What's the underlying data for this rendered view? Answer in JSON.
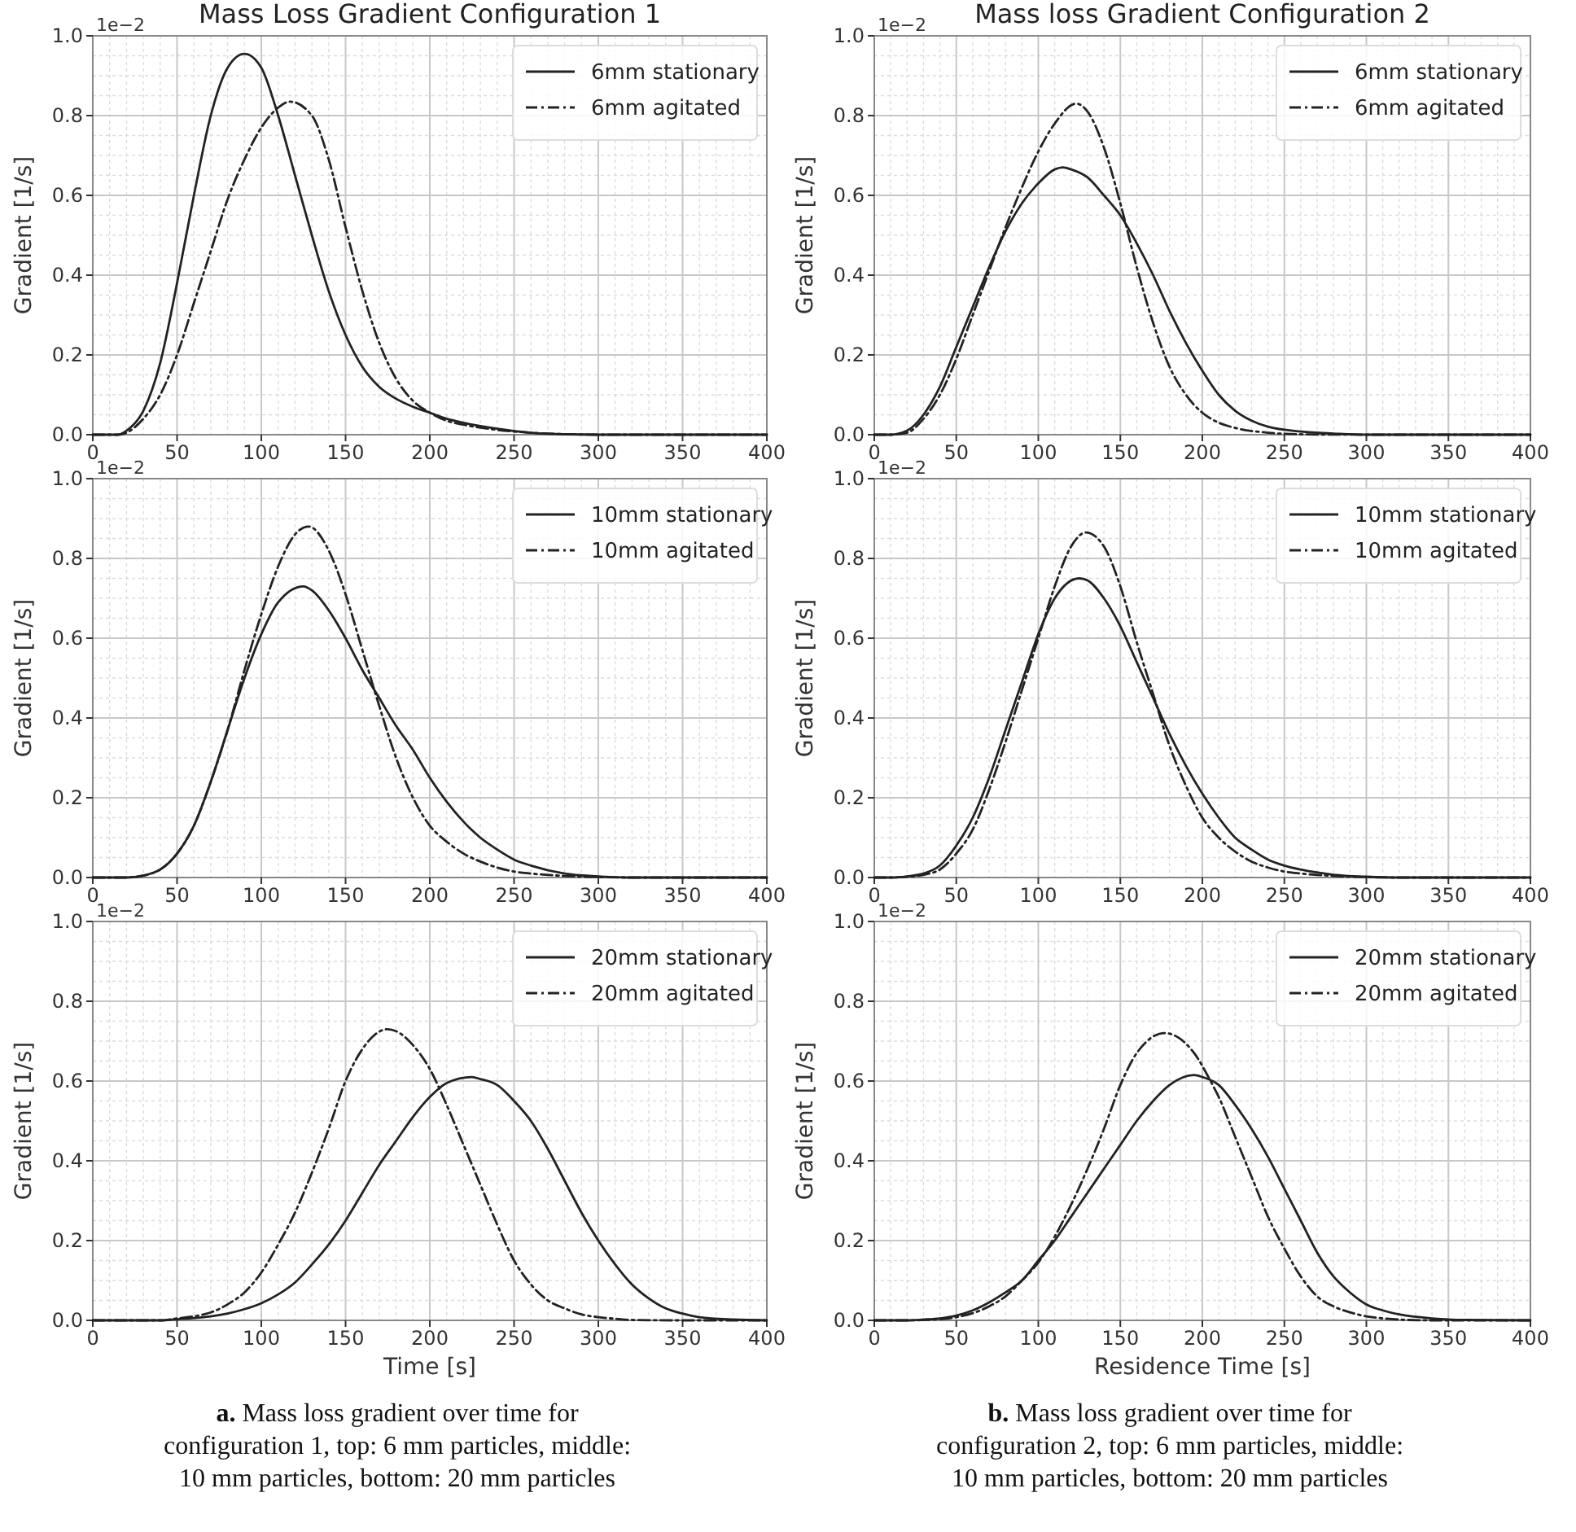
{
  "chart_data": [
    {
      "type": "line",
      "title": "Mass Loss Gradient Configuration 1",
      "ylabel": "Gradient [1/s]",
      "annotations": [
        "1e−2"
      ],
      "xlim": [
        0,
        400
      ],
      "ylim": [
        0,
        1
      ],
      "xticks": [
        0,
        50,
        100,
        150,
        200,
        250,
        300,
        350,
        400
      ],
      "yticks": [
        {
          "value": 0,
          "label": "0.0"
        },
        {
          "value": 0.2,
          "label": "0.2"
        },
        {
          "value": 0.4,
          "label": "0.4"
        },
        {
          "value": 0.6,
          "label": "0.6"
        },
        {
          "value": 0.8,
          "label": "0.8"
        },
        {
          "value": 1,
          "label": "1.0"
        }
      ],
      "grid": true,
      "legend": "top right",
      "series": [
        {
          "name": "6mm stationary",
          "color": "#222222",
          "line_style": "solid",
          "x": [
            0,
            15,
            20,
            30,
            40,
            50,
            60,
            70,
            80,
            90,
            100,
            110,
            120,
            130,
            140,
            150,
            160,
            170,
            180,
            190,
            200,
            210,
            220,
            240,
            260,
            280,
            300,
            400
          ],
          "values": [
            0,
            0,
            0.01,
            0.06,
            0.18,
            0.38,
            0.6,
            0.8,
            0.92,
            0.955,
            0.92,
            0.8,
            0.65,
            0.5,
            0.36,
            0.25,
            0.17,
            0.12,
            0.09,
            0.07,
            0.055,
            0.04,
            0.03,
            0.015,
            0.005,
            0.001,
            0,
            0
          ]
        },
        {
          "name": "6mm agitated",
          "color": "#222222",
          "line_style": "dashdot",
          "x": [
            0,
            15,
            20,
            30,
            40,
            50,
            60,
            70,
            80,
            90,
            100,
            110,
            117,
            130,
            140,
            150,
            160,
            170,
            180,
            190,
            200,
            210,
            220,
            240,
            260,
            300,
            400
          ],
          "values": [
            0,
            0,
            0.005,
            0.04,
            0.1,
            0.2,
            0.33,
            0.46,
            0.59,
            0.69,
            0.77,
            0.82,
            0.835,
            0.8,
            0.69,
            0.52,
            0.36,
            0.23,
            0.14,
            0.085,
            0.055,
            0.035,
            0.025,
            0.012,
            0.005,
            0,
            0
          ]
        }
      ]
    },
    {
      "type": "line",
      "title": "Mass loss Gradient Configuration 2",
      "ylabel": "Gradient [1/s]",
      "annotations": [
        "1e−2"
      ],
      "xlim": [
        0,
        400
      ],
      "ylim": [
        0,
        1
      ],
      "xticks": [
        0,
        50,
        100,
        150,
        200,
        250,
        300,
        350,
        400
      ],
      "yticks": [
        {
          "value": 0,
          "label": "0.0"
        },
        {
          "value": 0.2,
          "label": "0.2"
        },
        {
          "value": 0.4,
          "label": "0.4"
        },
        {
          "value": 0.6,
          "label": "0.6"
        },
        {
          "value": 0.8,
          "label": "0.8"
        },
        {
          "value": 1,
          "label": "1.0"
        }
      ],
      "grid": true,
      "legend": "top right",
      "series": [
        {
          "name": "6mm stationary",
          "color": "#222222",
          "line_style": "solid",
          "x": [
            0,
            10,
            20,
            30,
            40,
            50,
            60,
            70,
            80,
            90,
            100,
            110,
            115,
            120,
            130,
            140,
            150,
            160,
            170,
            180,
            190,
            200,
            210,
            220,
            230,
            240,
            260,
            280,
            300,
            400
          ],
          "values": [
            0,
            0,
            0.01,
            0.05,
            0.12,
            0.22,
            0.32,
            0.42,
            0.51,
            0.58,
            0.63,
            0.665,
            0.67,
            0.665,
            0.645,
            0.6,
            0.55,
            0.48,
            0.4,
            0.31,
            0.23,
            0.16,
            0.1,
            0.06,
            0.035,
            0.02,
            0.008,
            0.003,
            0,
            0
          ]
        },
        {
          "name": "6mm agitated",
          "color": "#222222",
          "line_style": "dashdot",
          "x": [
            0,
            10,
            20,
            30,
            40,
            50,
            60,
            70,
            80,
            90,
            100,
            110,
            123,
            130,
            140,
            150,
            160,
            170,
            180,
            190,
            200,
            210,
            220,
            240,
            260,
            300,
            400
          ],
          "values": [
            0,
            0,
            0.005,
            0.04,
            0.1,
            0.19,
            0.3,
            0.41,
            0.52,
            0.62,
            0.71,
            0.78,
            0.83,
            0.81,
            0.72,
            0.58,
            0.42,
            0.28,
            0.17,
            0.1,
            0.055,
            0.03,
            0.017,
            0.005,
            0.001,
            0,
            0
          ]
        }
      ]
    },
    {
      "type": "line",
      "ylabel": "Gradient [1/s]",
      "annotations": [
        "1e−2"
      ],
      "xlim": [
        0,
        400
      ],
      "ylim": [
        0,
        1
      ],
      "xticks": [
        0,
        50,
        100,
        150,
        200,
        250,
        300,
        350,
        400
      ],
      "yticks": [
        {
          "value": 0,
          "label": "0.0"
        },
        {
          "value": 0.2,
          "label": "0.2"
        },
        {
          "value": 0.4,
          "label": "0.4"
        },
        {
          "value": 0.6,
          "label": "0.6"
        },
        {
          "value": 0.8,
          "label": "0.8"
        },
        {
          "value": 1,
          "label": "1.0"
        }
      ],
      "grid": true,
      "legend": "top right",
      "series": [
        {
          "name": "10mm stationary",
          "color": "#222222",
          "line_style": "solid",
          "x": [
            0,
            20,
            30,
            40,
            50,
            60,
            70,
            80,
            90,
            100,
            110,
            125,
            130,
            140,
            150,
            160,
            170,
            180,
            190,
            200,
            210,
            220,
            230,
            240,
            250,
            260,
            280,
            300,
            320,
            400
          ],
          "values": [
            0,
            0,
            0.005,
            0.02,
            0.06,
            0.13,
            0.24,
            0.37,
            0.5,
            0.61,
            0.69,
            0.73,
            0.72,
            0.67,
            0.6,
            0.52,
            0.45,
            0.38,
            0.32,
            0.25,
            0.19,
            0.14,
            0.1,
            0.07,
            0.045,
            0.03,
            0.01,
            0.003,
            0,
            0
          ]
        },
        {
          "name": "10mm agitated",
          "color": "#222222",
          "line_style": "dashdot",
          "x": [
            0,
            20,
            30,
            40,
            50,
            60,
            70,
            80,
            90,
            100,
            110,
            120,
            128,
            140,
            150,
            160,
            170,
            180,
            190,
            200,
            210,
            220,
            230,
            240,
            250,
            260,
            280,
            300,
            320,
            400
          ],
          "values": [
            0,
            0,
            0.005,
            0.02,
            0.06,
            0.13,
            0.24,
            0.37,
            0.52,
            0.66,
            0.78,
            0.86,
            0.88,
            0.82,
            0.71,
            0.57,
            0.43,
            0.3,
            0.2,
            0.13,
            0.09,
            0.06,
            0.04,
            0.025,
            0.015,
            0.01,
            0.004,
            0.001,
            0,
            0
          ]
        }
      ]
    },
    {
      "type": "line",
      "ylabel": "Gradient [1/s]",
      "annotations": [
        "1e−2"
      ],
      "xlim": [
        0,
        400
      ],
      "ylim": [
        0,
        1
      ],
      "xticks": [
        0,
        50,
        100,
        150,
        200,
        250,
        300,
        350,
        400
      ],
      "yticks": [
        {
          "value": 0,
          "label": "0.0"
        },
        {
          "value": 0.2,
          "label": "0.2"
        },
        {
          "value": 0.4,
          "label": "0.4"
        },
        {
          "value": 0.6,
          "label": "0.6"
        },
        {
          "value": 0.8,
          "label": "0.8"
        },
        {
          "value": 1,
          "label": "1.0"
        }
      ],
      "grid": true,
      "legend": "top right",
      "series": [
        {
          "name": "10mm stationary",
          "color": "#222222",
          "line_style": "solid",
          "x": [
            0,
            10,
            20,
            30,
            40,
            50,
            60,
            70,
            80,
            90,
            100,
            110,
            125,
            130,
            140,
            150,
            160,
            170,
            180,
            190,
            200,
            210,
            220,
            230,
            240,
            250,
            260,
            280,
            300,
            320,
            400
          ],
          "values": [
            0,
            0,
            0.003,
            0.01,
            0.03,
            0.08,
            0.15,
            0.25,
            0.37,
            0.49,
            0.61,
            0.7,
            0.75,
            0.745,
            0.7,
            0.63,
            0.54,
            0.45,
            0.36,
            0.28,
            0.21,
            0.15,
            0.1,
            0.07,
            0.045,
            0.03,
            0.02,
            0.007,
            0.002,
            0,
            0
          ]
        },
        {
          "name": "10mm agitated",
          "color": "#222222",
          "line_style": "dashdot",
          "x": [
            0,
            10,
            20,
            30,
            40,
            50,
            60,
            70,
            80,
            90,
            100,
            110,
            120,
            129,
            140,
            150,
            160,
            170,
            180,
            190,
            200,
            210,
            220,
            230,
            240,
            250,
            260,
            280,
            300,
            320,
            400
          ],
          "values": [
            0,
            0,
            0.002,
            0.007,
            0.02,
            0.06,
            0.12,
            0.22,
            0.34,
            0.47,
            0.6,
            0.73,
            0.83,
            0.865,
            0.83,
            0.73,
            0.59,
            0.46,
            0.33,
            0.23,
            0.15,
            0.1,
            0.065,
            0.04,
            0.025,
            0.015,
            0.01,
            0.004,
            0.001,
            0,
            0
          ]
        }
      ]
    },
    {
      "type": "line",
      "xlabel": "Time [s]",
      "ylabel": "Gradient [1/s]",
      "annotations": [
        "1e−2",
        "a. Mass loss gradient over time for configuration 1, top: 6 mm particles, middle: 10 mm particles, bottom: 20 mm particles"
      ],
      "xlim": [
        0,
        400
      ],
      "ylim": [
        0,
        1
      ],
      "xticks": [
        0,
        50,
        100,
        150,
        200,
        250,
        300,
        350,
        400
      ],
      "yticks": [
        {
          "value": 0,
          "label": "0.0"
        },
        {
          "value": 0.2,
          "label": "0.2"
        },
        {
          "value": 0.4,
          "label": "0.4"
        },
        {
          "value": 0.6,
          "label": "0.6"
        },
        {
          "value": 0.8,
          "label": "0.8"
        },
        {
          "value": 1,
          "label": "1.0"
        }
      ],
      "grid": true,
      "legend": "top right",
      "series": [
        {
          "name": "20mm stationary",
          "color": "#222222",
          "line_style": "solid",
          "x": [
            0,
            40,
            50,
            60,
            70,
            80,
            90,
            100,
            110,
            120,
            130,
            140,
            150,
            160,
            170,
            180,
            190,
            200,
            210,
            225,
            230,
            240,
            250,
            260,
            270,
            280,
            290,
            300,
            310,
            320,
            330,
            340,
            350,
            360,
            380,
            400
          ],
          "values": [
            0,
            0,
            0.003,
            0.006,
            0.01,
            0.017,
            0.028,
            0.043,
            0.065,
            0.095,
            0.14,
            0.19,
            0.25,
            0.32,
            0.39,
            0.45,
            0.51,
            0.56,
            0.595,
            0.61,
            0.605,
            0.59,
            0.55,
            0.5,
            0.43,
            0.35,
            0.27,
            0.2,
            0.14,
            0.09,
            0.055,
            0.03,
            0.017,
            0.008,
            0.002,
            0
          ]
        },
        {
          "name": "20mm agitated",
          "color": "#222222",
          "line_style": "dashdot",
          "x": [
            0,
            40,
            50,
            60,
            70,
            80,
            90,
            100,
            110,
            120,
            130,
            140,
            150,
            160,
            175,
            180,
            190,
            200,
            210,
            220,
            230,
            240,
            250,
            260,
            270,
            280,
            290,
            300,
            310,
            320,
            350,
            400
          ],
          "values": [
            0,
            0,
            0.005,
            0.01,
            0.02,
            0.04,
            0.07,
            0.12,
            0.19,
            0.27,
            0.37,
            0.48,
            0.6,
            0.68,
            0.73,
            0.725,
            0.69,
            0.63,
            0.54,
            0.44,
            0.34,
            0.24,
            0.15,
            0.09,
            0.05,
            0.03,
            0.015,
            0.008,
            0.004,
            0.001,
            0,
            0
          ]
        }
      ]
    },
    {
      "type": "line",
      "xlabel": "Residence Time [s]",
      "ylabel": "Gradient [1/s]",
      "annotations": [
        "1e−2",
        "b. Mass loss gradient over time for configuration 2, top: 6 mm particles, middle: 10 mm particles, bottom: 20 mm particles"
      ],
      "xlim": [
        0,
        400
      ],
      "ylim": [
        0,
        1
      ],
      "xticks": [
        0,
        50,
        100,
        150,
        200,
        250,
        300,
        350,
        400
      ],
      "yticks": [
        {
          "value": 0,
          "label": "0.0"
        },
        {
          "value": 0.2,
          "label": "0.2"
        },
        {
          "value": 0.4,
          "label": "0.4"
        },
        {
          "value": 0.6,
          "label": "0.6"
        },
        {
          "value": 0.8,
          "label": "0.8"
        },
        {
          "value": 1,
          "label": "1.0"
        }
      ],
      "grid": true,
      "legend": "top right",
      "series": [
        {
          "name": "20mm stationary",
          "color": "#222222",
          "line_style": "solid",
          "x": [
            0,
            20,
            30,
            40,
            50,
            60,
            70,
            80,
            90,
            100,
            110,
            120,
            130,
            140,
            150,
            160,
            170,
            180,
            195,
            200,
            210,
            220,
            230,
            240,
            250,
            260,
            270,
            280,
            290,
            300,
            310,
            320,
            340,
            360,
            400
          ],
          "values": [
            0,
            0,
            0.002,
            0.005,
            0.012,
            0.025,
            0.045,
            0.07,
            0.1,
            0.15,
            0.2,
            0.26,
            0.32,
            0.38,
            0.44,
            0.5,
            0.55,
            0.59,
            0.615,
            0.61,
            0.59,
            0.54,
            0.48,
            0.41,
            0.33,
            0.25,
            0.17,
            0.11,
            0.07,
            0.04,
            0.025,
            0.015,
            0.005,
            0.001,
            0
          ]
        },
        {
          "name": "20mm agitated",
          "color": "#222222",
          "line_style": "dashdot",
          "x": [
            0,
            20,
            30,
            40,
            50,
            60,
            70,
            80,
            90,
            100,
            110,
            120,
            130,
            140,
            150,
            160,
            177,
            185,
            195,
            205,
            210,
            220,
            230,
            240,
            250,
            260,
            270,
            280,
            290,
            300,
            310,
            320,
            340,
            400
          ],
          "values": [
            0,
            0,
            0.001,
            0.003,
            0.008,
            0.018,
            0.035,
            0.06,
            0.1,
            0.145,
            0.21,
            0.29,
            0.38,
            0.48,
            0.59,
            0.67,
            0.72,
            0.71,
            0.67,
            0.6,
            0.56,
            0.46,
            0.36,
            0.26,
            0.18,
            0.11,
            0.06,
            0.035,
            0.02,
            0.01,
            0.005,
            0.002,
            0,
            0
          ]
        }
      ]
    }
  ]
}
